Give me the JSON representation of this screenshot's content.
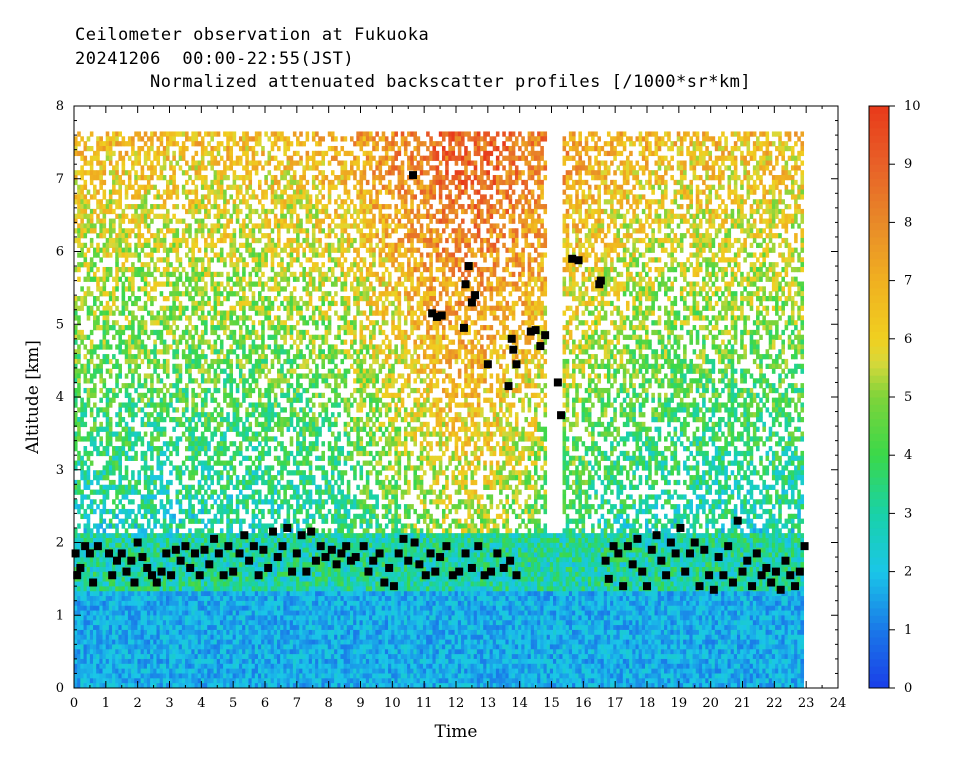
{
  "header": {
    "line1": "Ceilometer observation at Fukuoka",
    "line2": "20241206  00:00-22:55(JST)",
    "line3": "Normalized attenuated backscatter profiles [/1000*sr*km]"
  },
  "chart_data": {
    "type": "heatmap",
    "xlabel": "Time",
    "ylabel": "Altitude [km]",
    "xlim": [
      0,
      24
    ],
    "ylim": [
      0,
      8
    ],
    "x_ticks": [
      "0",
      "1",
      "2",
      "3",
      "4",
      "5",
      "6",
      "7",
      "8",
      "9",
      "10",
      "11",
      "12",
      "13",
      "14",
      "15",
      "16",
      "17",
      "18",
      "19",
      "20",
      "21",
      "22",
      "23",
      "24"
    ],
    "y_ticks": [
      "0",
      "1",
      "2",
      "3",
      "4",
      "5",
      "6",
      "7",
      "8"
    ],
    "data_extent": {
      "time_start": 0,
      "time_end": 22.92,
      "altitude_top": 7.65
    },
    "colorbar": {
      "range": [
        0,
        10
      ],
      "ticks": [
        "0",
        "1",
        "2",
        "3",
        "4",
        "5",
        "6",
        "7",
        "8",
        "9",
        "10"
      ],
      "stops": [
        {
          "v": 0,
          "c": "#1a3ee8"
        },
        {
          "v": 1,
          "c": "#1a78e8"
        },
        {
          "v": 2,
          "c": "#1ac6e8"
        },
        {
          "v": 3,
          "c": "#19d2a8"
        },
        {
          "v": 4,
          "c": "#3ad84a"
        },
        {
          "v": 5,
          "c": "#7ed43a"
        },
        {
          "v": 5.6,
          "c": "#d8d83a"
        },
        {
          "v": 6,
          "c": "#f0d020"
        },
        {
          "v": 7,
          "c": "#f0b020"
        },
        {
          "v": 8,
          "c": "#e88a28"
        },
        {
          "v": 9,
          "c": "#e86028"
        },
        {
          "v": 10,
          "c": "#e83a1a"
        }
      ]
    },
    "cloud_base_marker_color": "#000000",
    "cloud_base_hits": [
      [
        0.05,
        1.85
      ],
      [
        0.1,
        1.55
      ],
      [
        0.2,
        1.65
      ],
      [
        0.35,
        1.95
      ],
      [
        0.5,
        1.85
      ],
      [
        0.6,
        1.45
      ],
      [
        0.75,
        1.95
      ],
      [
        1.1,
        1.85
      ],
      [
        1.2,
        1.55
      ],
      [
        1.35,
        1.75
      ],
      [
        1.5,
        1.85
      ],
      [
        1.65,
        1.6
      ],
      [
        1.8,
        1.75
      ],
      [
        1.9,
        1.45
      ],
      [
        2.0,
        2.0
      ],
      [
        2.15,
        1.8
      ],
      [
        2.3,
        1.65
      ],
      [
        2.45,
        1.55
      ],
      [
        2.6,
        1.45
      ],
      [
        2.75,
        1.6
      ],
      [
        2.9,
        1.85
      ],
      [
        3.05,
        1.55
      ],
      [
        3.2,
        1.9
      ],
      [
        3.35,
        1.75
      ],
      [
        3.5,
        1.95
      ],
      [
        3.65,
        1.65
      ],
      [
        3.8,
        1.85
      ],
      [
        3.95,
        1.55
      ],
      [
        4.1,
        1.9
      ],
      [
        4.25,
        1.7
      ],
      [
        4.4,
        2.05
      ],
      [
        4.55,
        1.85
      ],
      [
        4.7,
        1.55
      ],
      [
        4.85,
        1.95
      ],
      [
        5.0,
        1.6
      ],
      [
        5.2,
        1.85
      ],
      [
        5.35,
        2.1
      ],
      [
        5.5,
        1.75
      ],
      [
        5.65,
        1.95
      ],
      [
        5.8,
        1.55
      ],
      [
        5.95,
        1.9
      ],
      [
        6.1,
        1.65
      ],
      [
        6.25,
        2.15
      ],
      [
        6.4,
        1.8
      ],
      [
        6.55,
        1.95
      ],
      [
        6.7,
        2.2
      ],
      [
        6.85,
        1.6
      ],
      [
        7.0,
        1.85
      ],
      [
        7.15,
        2.1
      ],
      [
        7.3,
        1.6
      ],
      [
        7.45,
        2.15
      ],
      [
        7.6,
        1.75
      ],
      [
        7.75,
        1.95
      ],
      [
        7.9,
        1.8
      ],
      [
        8.1,
        1.9
      ],
      [
        8.25,
        1.7
      ],
      [
        8.4,
        1.85
      ],
      [
        8.55,
        1.95
      ],
      [
        8.7,
        1.75
      ],
      [
        8.85,
        1.8
      ],
      [
        9.1,
        1.95
      ],
      [
        9.25,
        1.6
      ],
      [
        9.4,
        1.75
      ],
      [
        9.6,
        1.85
      ],
      [
        9.75,
        1.45
      ],
      [
        9.9,
        1.65
      ],
      [
        10.05,
        1.4
      ],
      [
        10.2,
        1.85
      ],
      [
        10.35,
        2.05
      ],
      [
        10.5,
        1.75
      ],
      [
        10.7,
        2.0
      ],
      [
        10.85,
        1.7
      ],
      [
        11.05,
        1.55
      ],
      [
        11.2,
        1.85
      ],
      [
        11.35,
        1.6
      ],
      [
        11.5,
        1.8
      ],
      [
        11.7,
        1.95
      ],
      [
        11.9,
        1.55
      ],
      [
        12.1,
        1.6
      ],
      [
        12.3,
        1.85
      ],
      [
        12.5,
        1.65
      ],
      [
        12.7,
        1.95
      ],
      [
        12.9,
        1.55
      ],
      [
        13.1,
        1.6
      ],
      [
        13.3,
        1.85
      ],
      [
        13.5,
        1.65
      ],
      [
        13.7,
        1.75
      ],
      [
        13.9,
        1.55
      ],
      [
        16.7,
        1.75
      ],
      [
        16.8,
        1.5
      ],
      [
        16.95,
        1.95
      ],
      [
        17.1,
        1.85
      ],
      [
        17.25,
        1.4
      ],
      [
        17.4,
        1.95
      ],
      [
        17.55,
        1.7
      ],
      [
        17.7,
        2.05
      ],
      [
        17.85,
        1.6
      ],
      [
        18.0,
        1.4
      ],
      [
        18.15,
        1.9
      ],
      [
        18.3,
        2.1
      ],
      [
        18.45,
        1.75
      ],
      [
        18.6,
        1.55
      ],
      [
        18.75,
        2.0
      ],
      [
        18.9,
        1.85
      ],
      [
        19.05,
        2.2
      ],
      [
        19.2,
        1.6
      ],
      [
        19.35,
        1.85
      ],
      [
        19.5,
        2.0
      ],
      [
        19.65,
        1.4
      ],
      [
        19.8,
        1.9
      ],
      [
        19.95,
        1.55
      ],
      [
        20.1,
        1.35
      ],
      [
        20.25,
        1.8
      ],
      [
        20.4,
        1.55
      ],
      [
        20.55,
        1.95
      ],
      [
        20.7,
        1.45
      ],
      [
        20.85,
        2.3
      ],
      [
        21.0,
        1.6
      ],
      [
        21.15,
        1.75
      ],
      [
        21.3,
        1.4
      ],
      [
        21.45,
        1.85
      ],
      [
        21.6,
        1.55
      ],
      [
        21.75,
        1.65
      ],
      [
        21.9,
        1.45
      ],
      [
        22.05,
        1.6
      ],
      [
        22.2,
        1.35
      ],
      [
        22.35,
        1.75
      ],
      [
        22.5,
        1.55
      ],
      [
        22.65,
        1.4
      ],
      [
        22.8,
        1.6
      ],
      [
        22.95,
        1.95
      ]
    ],
    "upper_cloud_hits": [
      [
        10.65,
        7.05
      ],
      [
        11.25,
        5.15
      ],
      [
        11.4,
        5.1
      ],
      [
        11.55,
        5.12
      ],
      [
        12.25,
        4.95
      ],
      [
        12.3,
        5.55
      ],
      [
        12.4,
        5.8
      ],
      [
        12.5,
        5.3
      ],
      [
        12.6,
        5.4
      ],
      [
        13.0,
        4.45
      ],
      [
        13.65,
        4.15
      ],
      [
        13.75,
        4.8
      ],
      [
        13.8,
        4.65
      ],
      [
        13.9,
        4.45
      ],
      [
        14.35,
        4.9
      ],
      [
        14.5,
        4.92
      ],
      [
        14.65,
        4.7
      ],
      [
        14.8,
        4.85
      ],
      [
        15.2,
        4.2
      ],
      [
        15.3,
        3.75
      ],
      [
        15.65,
        5.9
      ],
      [
        15.85,
        5.88
      ],
      [
        16.5,
        5.55
      ],
      [
        16.55,
        5.6
      ]
    ]
  }
}
